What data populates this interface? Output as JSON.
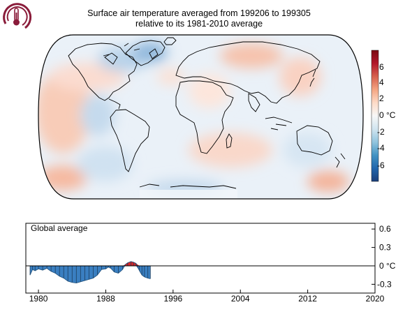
{
  "title": {
    "line1": "Surface air temperature averaged from 199206 to 199305",
    "line2": "relative to its 1981-2010 average"
  },
  "colorbar": {
    "ticks": [
      "6",
      "4",
      "2",
      "0",
      "-2",
      "-4",
      "-6"
    ],
    "unit": "°C",
    "colors": [
      "#7a0a12",
      "#b2182b",
      "#d6604d",
      "#f4a582",
      "#fddbc7",
      "#f7f7f7",
      "#d1e5f0",
      "#92c5de",
      "#4393c3",
      "#2166ac",
      "#1a3f7a"
    ]
  },
  "chart_data": {
    "type": "area",
    "title": "Global average",
    "unit": "°C",
    "x_ticks": [
      "1980",
      "1988",
      "1996",
      "2004",
      "2012",
      "2020"
    ],
    "y_ticks": [
      "0.6",
      "0.3",
      "0",
      "-0.3"
    ],
    "xlim": [
      1978.5,
      2020
    ],
    "ylim": [
      -0.45,
      0.7
    ],
    "positive_color": "#d62728",
    "negative_color": "#3a7fc1",
    "x": [
      1979.0,
      1979.3,
      1979.6,
      1980.0,
      1980.5,
      1981.0,
      1981.5,
      1982.0,
      1982.5,
      1983.0,
      1983.5,
      1984.0,
      1984.5,
      1985.0,
      1985.5,
      1986.0,
      1986.5,
      1987.0,
      1987.5,
      1988.0,
      1988.3,
      1988.6,
      1989.0,
      1989.5,
      1990.0,
      1990.3,
      1990.6,
      1991.0,
      1991.3,
      1991.6,
      1992.0,
      1992.3,
      1992.6,
      1993.0,
      1993.3
    ],
    "values": [
      -0.15,
      -0.06,
      -0.08,
      -0.05,
      -0.07,
      -0.04,
      -0.09,
      -0.12,
      -0.17,
      -0.2,
      -0.25,
      -0.27,
      -0.28,
      -0.26,
      -0.24,
      -0.22,
      -0.2,
      -0.15,
      -0.06,
      -0.05,
      -0.02,
      -0.04,
      -0.1,
      -0.12,
      -0.06,
      0.02,
      0.05,
      0.07,
      0.06,
      0.04,
      -0.08,
      -0.15,
      -0.18,
      -0.2,
      -0.21
    ]
  }
}
